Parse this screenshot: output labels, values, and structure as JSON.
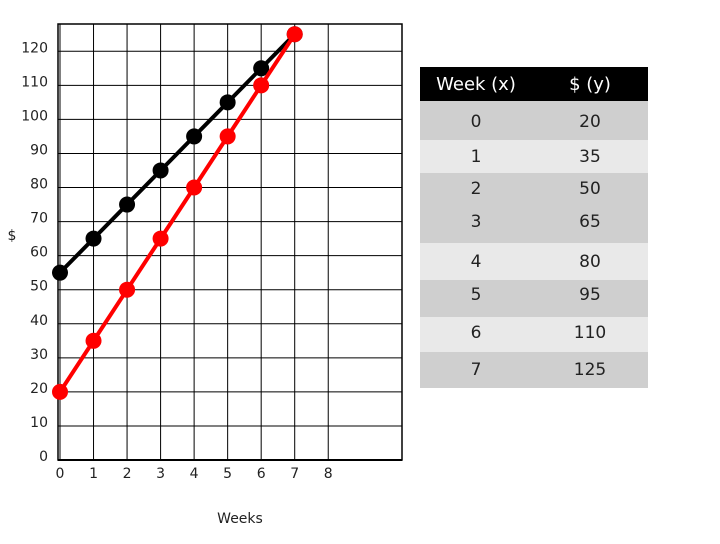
{
  "chart_data": {
    "type": "line",
    "x": [
      0,
      1,
      2,
      3,
      4,
      5,
      6,
      7
    ],
    "series": [
      {
        "color": "#000000",
        "values": [
          55,
          65,
          75,
          85,
          95,
          105,
          115,
          125
        ]
      },
      {
        "color": "#ff0000",
        "values": [
          20,
          35,
          50,
          65,
          80,
          95,
          110,
          125
        ]
      }
    ],
    "xlabel": "Weeks",
    "ylabel": "$",
    "xlim": [
      0,
      10.2
    ],
    "ylim": [
      0,
      128
    ],
    "xticks": [
      0,
      1,
      2,
      3,
      4,
      5,
      6,
      7,
      8
    ],
    "yticks": [
      0,
      10,
      20,
      30,
      40,
      50,
      60,
      70,
      80,
      90,
      100,
      110,
      120
    ],
    "grid": true
  },
  "table": {
    "header": [
      "Week (x)",
      "$ (y)"
    ],
    "rows": [
      [
        0,
        20
      ],
      [
        1,
        35
      ],
      [
        2,
        50
      ],
      [
        3,
        65
      ],
      [
        4,
        80
      ],
      [
        5,
        95
      ],
      [
        6,
        110
      ],
      [
        7,
        125
      ]
    ]
  }
}
